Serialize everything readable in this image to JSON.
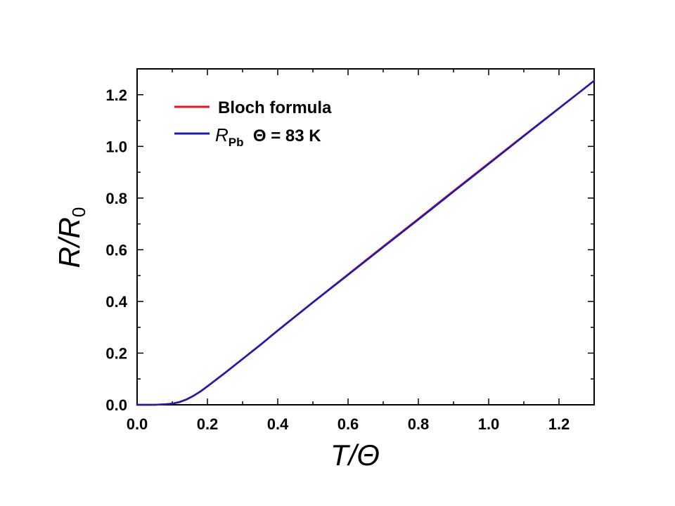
{
  "chart_data": {
    "type": "line",
    "title": "",
    "xlabel": {
      "main": "T",
      "rest": "/Θ"
    },
    "ylabel": {
      "main": "R",
      "rest": "/R",
      "sub": "0"
    },
    "xlim": [
      0.0,
      1.3
    ],
    "ylim": [
      0.0,
      1.3
    ],
    "x_ticks": [
      "0.0",
      "0.2",
      "0.4",
      "0.6",
      "0.8",
      "1.0",
      "1.2"
    ],
    "y_ticks": [
      "0.0",
      "0.2",
      "0.4",
      "0.6",
      "0.8",
      "1.0",
      "1.2"
    ],
    "grid": false,
    "legend_position": "top-left",
    "series": [
      {
        "name": "Bloch formula",
        "color": "#e8141c",
        "x": [
          0.0,
          0.05,
          0.08,
          0.1,
          0.12,
          0.14,
          0.16,
          0.18,
          0.2,
          0.25,
          0.3,
          0.35,
          0.4,
          0.5,
          0.6,
          0.7,
          0.8,
          0.9,
          1.0,
          1.1,
          1.2,
          1.3
        ],
        "y": [
          0.0,
          0.0,
          0.002,
          0.005,
          0.011,
          0.021,
          0.035,
          0.052,
          0.072,
          0.124,
          0.178,
          0.232,
          0.288,
          0.397,
          0.505,
          0.613,
          0.72,
          0.828,
          0.935,
          1.042,
          1.148,
          1.254
        ]
      },
      {
        "name": "R_Pb Θ = 83 K",
        "legend_label": {
          "r": "R",
          "sub": "Pb",
          "rest": "  Θ = 83 K"
        },
        "color": "#1a1ab8",
        "x": [
          0.0,
          0.05,
          0.08,
          0.1,
          0.12,
          0.14,
          0.16,
          0.18,
          0.2,
          0.25,
          0.3,
          0.35,
          0.4,
          0.5,
          0.6,
          0.7,
          0.8,
          0.9,
          1.0,
          1.1,
          1.2,
          1.3
        ],
        "y": [
          0.0,
          0.0,
          0.002,
          0.004,
          0.01,
          0.02,
          0.034,
          0.051,
          0.071,
          0.123,
          0.177,
          0.231,
          0.287,
          0.396,
          0.503,
          0.61,
          0.717,
          0.825,
          0.932,
          1.04,
          1.147,
          1.254
        ]
      }
    ]
  }
}
